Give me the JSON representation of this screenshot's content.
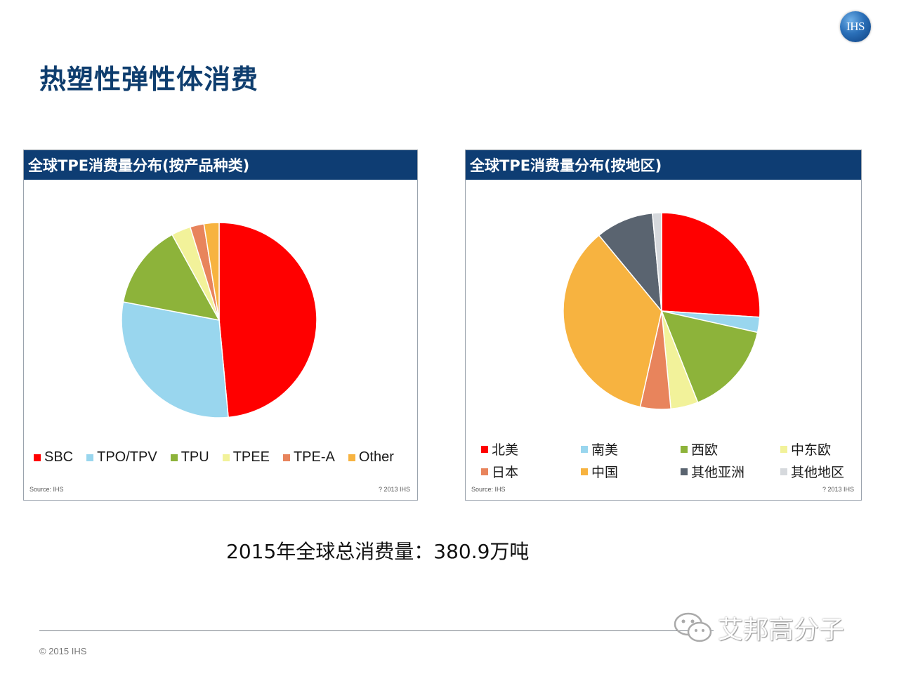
{
  "slide": {
    "title": "热塑性弹性体消费",
    "logo_text": "IHS",
    "total_text": "2015年全球总消费量：380.9万吨",
    "copyright": "© 2015 IHS",
    "watermark": "艾邦高分子"
  },
  "chart_data": [
    {
      "type": "pie",
      "title": "全球TPE消费量分布(按产品种类)",
      "source": "Source: IHS",
      "copyright": "? 2013 IHS",
      "legend_position": "bottom",
      "slices": [
        {
          "label": "SBC",
          "value": 48.5,
          "color": "#ff0000"
        },
        {
          "label": "TPO/TPV",
          "value": 29.5,
          "color": "#99d6ee"
        },
        {
          "label": "TPU",
          "value": 14.0,
          "color": "#8db33a"
        },
        {
          "label": "TPEE",
          "value": 3.2,
          "color": "#f2f29a"
        },
        {
          "label": "TPE-A",
          "value": 2.3,
          "color": "#e8845c"
        },
        {
          "label": "Other",
          "value": 2.5,
          "color": "#f7b340"
        }
      ]
    },
    {
      "type": "pie",
      "title": "全球TPE消费量分布(按地区)",
      "source": "Source: IHS",
      "copyright": "? 2013 IHS",
      "legend_position": "bottom",
      "slices": [
        {
          "label": "北美",
          "value": 26.0,
          "color": "#ff0000"
        },
        {
          "label": "南美",
          "value": 2.5,
          "color": "#99d6ee"
        },
        {
          "label": "西欧",
          "value": 15.5,
          "color": "#8db33a"
        },
        {
          "label": "中东欧",
          "value": 4.5,
          "color": "#f2f29a"
        },
        {
          "label": "日本",
          "value": 5.0,
          "color": "#e8845c"
        },
        {
          "label": "中国",
          "value": 35.5,
          "color": "#f7b340"
        },
        {
          "label": "其他亚洲",
          "value": 9.5,
          "color": "#5a6470"
        },
        {
          "label": "其他地区",
          "value": 1.5,
          "color": "#d6d9dd"
        }
      ]
    }
  ]
}
